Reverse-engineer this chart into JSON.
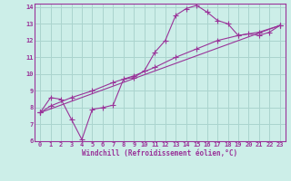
{
  "bg_color": "#cceee8",
  "grid_color": "#aad4ce",
  "line_color": "#993399",
  "xlabel": "Windchill (Refroidissement éolien,°C)",
  "xlim": [
    -0.5,
    23.5
  ],
  "ylim": [
    6,
    14.2
  ],
  "xticks": [
    0,
    1,
    2,
    3,
    4,
    5,
    6,
    7,
    8,
    9,
    10,
    11,
    12,
    13,
    14,
    15,
    16,
    17,
    18,
    19,
    20,
    21,
    22,
    23
  ],
  "yticks": [
    6,
    7,
    8,
    9,
    10,
    11,
    12,
    13,
    14
  ],
  "line1_x": [
    0,
    1,
    2,
    3,
    4,
    5,
    6,
    7,
    8,
    9,
    10,
    11,
    12,
    13,
    14,
    15,
    16,
    17,
    18,
    19,
    20,
    21,
    22,
    23
  ],
  "line1_y": [
    7.7,
    8.6,
    8.5,
    7.3,
    6.1,
    7.9,
    8.0,
    8.15,
    9.7,
    9.8,
    10.2,
    11.3,
    12.0,
    13.5,
    13.9,
    14.1,
    13.7,
    13.2,
    13.0,
    12.3,
    12.4,
    12.3,
    12.5,
    12.9
  ],
  "line2_x": [
    0,
    1,
    3,
    5,
    7,
    9,
    11,
    13,
    15,
    17,
    19,
    21,
    23
  ],
  "line2_y": [
    7.7,
    8.1,
    8.6,
    9.0,
    9.5,
    9.9,
    10.4,
    11.0,
    11.5,
    12.0,
    12.3,
    12.5,
    12.9
  ],
  "line3_x": [
    0,
    23
  ],
  "line3_y": [
    7.7,
    12.9
  ]
}
